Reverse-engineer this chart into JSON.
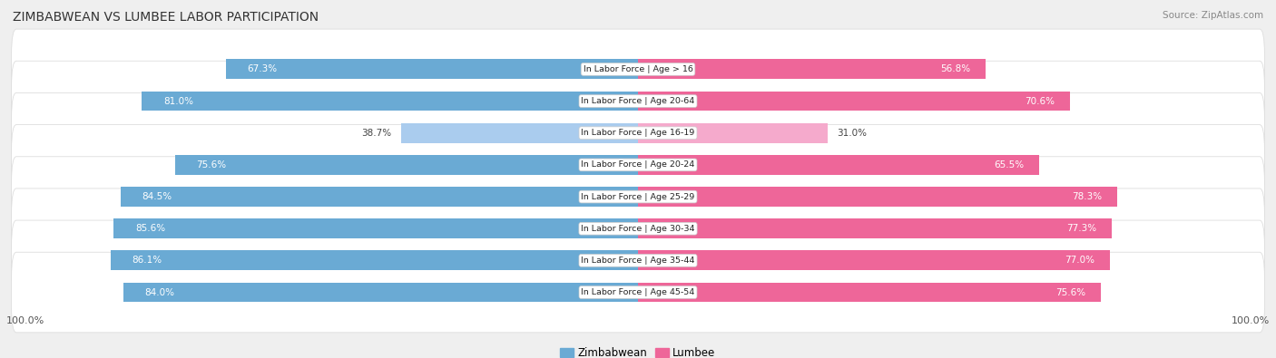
{
  "title": "ZIMBABWEAN VS LUMBEE LABOR PARTICIPATION",
  "source": "Source: ZipAtlas.com",
  "categories": [
    "In Labor Force | Age > 16",
    "In Labor Force | Age 20-64",
    "In Labor Force | Age 16-19",
    "In Labor Force | Age 20-24",
    "In Labor Force | Age 25-29",
    "In Labor Force | Age 30-34",
    "In Labor Force | Age 35-44",
    "In Labor Force | Age 45-54"
  ],
  "zimbabwean": [
    67.3,
    81.0,
    38.7,
    75.6,
    84.5,
    85.6,
    86.1,
    84.0
  ],
  "lumbee": [
    56.8,
    70.6,
    31.0,
    65.5,
    78.3,
    77.3,
    77.0,
    75.6
  ],
  "blue_color": "#6AAAD4",
  "blue_light_color": "#AACCEE",
  "pink_color": "#EE6699",
  "pink_light_color": "#F5AACC",
  "bg_color": "#EFEFEF",
  "row_bg": "#F8F8F8",
  "row_border": "#DDDDDD",
  "figsize": [
    14.06,
    3.95
  ],
  "dpi": 100,
  "max_val": 100
}
